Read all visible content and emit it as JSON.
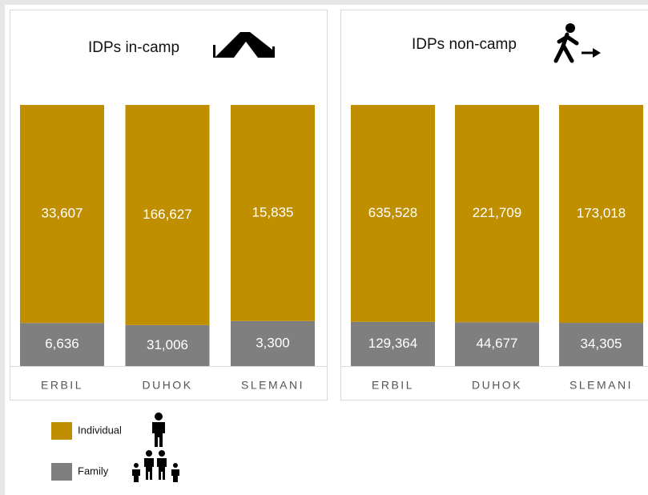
{
  "chart_data": [
    {
      "type": "bar",
      "stacked": "percent",
      "title": "IDPs in-camp",
      "categories": [
        "ERBIL",
        "DUHOK",
        "SLEMANI"
      ],
      "series": [
        {
          "name": "Individual",
          "color": "#bf8f00",
          "values": [
            33607,
            166627,
            15835
          ],
          "value_labels": [
            "33,607",
            "166,627",
            "15,835"
          ]
        },
        {
          "name": "Family",
          "color": "#7f7f7f",
          "values": [
            6636,
            31006,
            3300
          ],
          "value_labels": [
            "6,636",
            "31,006",
            "3,300"
          ]
        }
      ]
    },
    {
      "type": "bar",
      "stacked": "percent",
      "title": "IDPs non-camp",
      "categories": [
        "ERBIL",
        "DUHOK",
        "SLEMANI"
      ],
      "series": [
        {
          "color": "#bf8f00",
          "values": [
            635528,
            221709,
            173018
          ],
          "value_labels": [
            "635,528",
            "221,709",
            "173,018"
          ]
        },
        {
          "color": "#7f7f7f",
          "values": [
            129364,
            44677,
            34305
          ],
          "value_labels": [
            "129,364",
            "44,677",
            "34,305"
          ]
        }
      ]
    }
  ]
}
